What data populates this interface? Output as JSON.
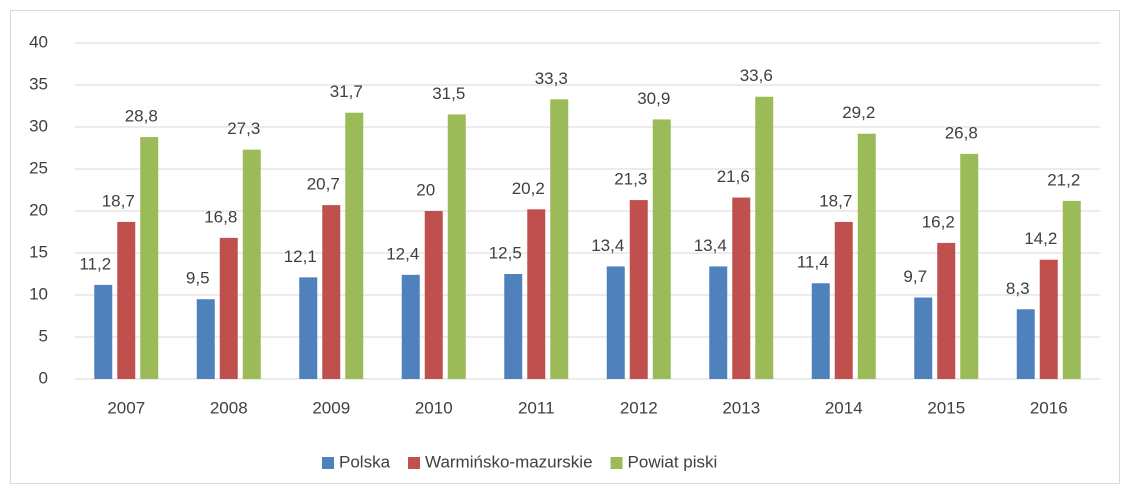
{
  "chart_data": {
    "type": "bar",
    "categories": [
      "2007",
      "2008",
      "2009",
      "2010",
      "2011",
      "2012",
      "2013",
      "2014",
      "2015",
      "2016"
    ],
    "series": [
      {
        "name": "Polska",
        "color": "#4f81bd",
        "values": [
          11.2,
          9.5,
          12.1,
          12.4,
          12.5,
          13.4,
          13.4,
          11.4,
          9.7,
          8.3
        ],
        "value_labels": [
          "11,2",
          "9,5",
          "12,1",
          "12,4",
          "12,5",
          "13,4",
          "13,4",
          "11,4",
          "9,7",
          "8,3"
        ]
      },
      {
        "name": "Warmińsko-mazurskie",
        "color": "#c0504d",
        "values": [
          18.7,
          16.8,
          20.7,
          20,
          20.2,
          21.3,
          21.6,
          18.7,
          16.2,
          14.2
        ],
        "value_labels": [
          "18,7",
          "16,8",
          "20,7",
          "20",
          "20,2",
          "21,3",
          "21,6",
          "18,7",
          "16,2",
          "14,2"
        ]
      },
      {
        "name": "Powiat piski",
        "color": "#9bbb59",
        "values": [
          28.8,
          27.3,
          31.7,
          31.5,
          33.3,
          30.9,
          33.6,
          29.2,
          26.8,
          21.2
        ],
        "value_labels": [
          "28,8",
          "27,3",
          "31,7",
          "31,5",
          "33,3",
          "30,9",
          "33,6",
          "29,2",
          "26,8",
          "21,2"
        ]
      }
    ],
    "ylim": [
      0,
      40
    ],
    "yticks": [
      0,
      5,
      10,
      15,
      20,
      25,
      30,
      35,
      40
    ],
    "grid": true,
    "legend": "bottom"
  }
}
